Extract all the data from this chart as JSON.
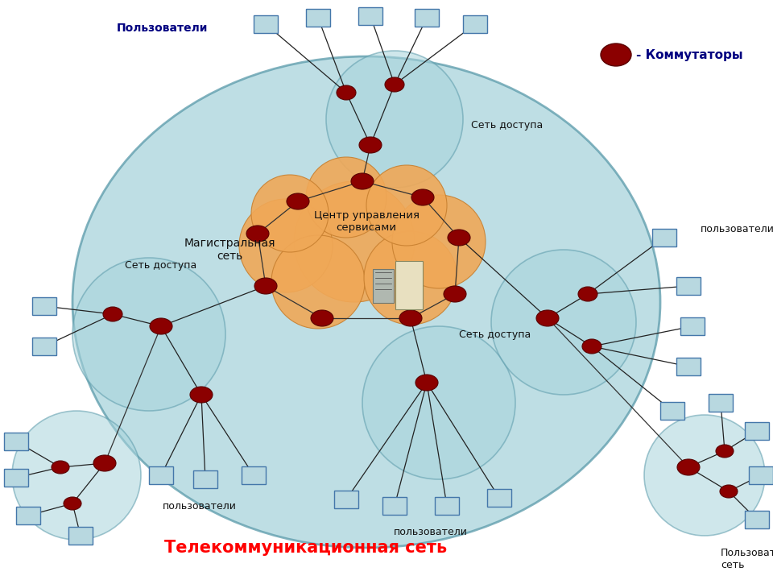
{
  "bg_color": "#ffffff",
  "main_ellipse_color": "#a8d4dc",
  "main_ellipse_alpha": 0.75,
  "cloud_color": "#f0a857",
  "cloud_alpha": 0.9,
  "node_color": "#8b0000",
  "node_edge": "#5a0000",
  "access_circle_color": "#a8d4dc",
  "access_circle_alpha": 0.55,
  "access_circle_edge": "#5a9aaa",
  "line_color": "#222222",
  "terminal_face": "#b8d8e0",
  "terminal_edge": "#4477aa",
  "title": "Телекоммуникационная сеть",
  "title_color": "red",
  "label_backbone": "Магистральная\nсеть",
  "label_center": "Центр управления\nсервисами",
  "label_access": "Сеть доступа",
  "label_users_top": "Пользователи",
  "label_users_bottom_left": "пользователи",
  "label_users_bottom_mid": "пользователи",
  "label_users_right": "пользователи",
  "label_user_net": "Пользовательская\nсеть",
  "label_kommutatory": "- Коммутаторы",
  "kommutatory_color": "navy"
}
